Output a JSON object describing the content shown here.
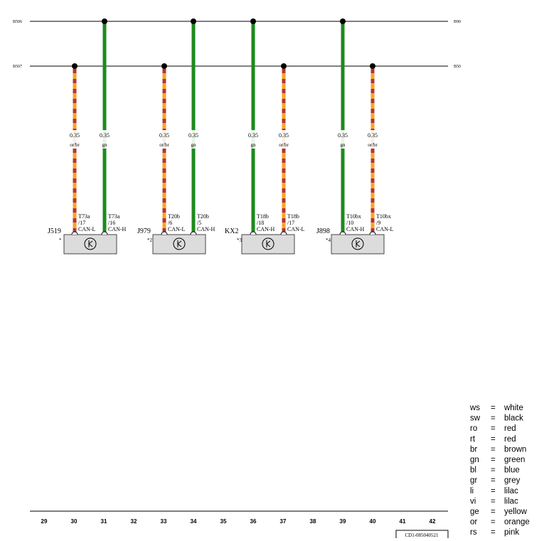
{
  "buses": [
    {
      "left_label": "B506",
      "right_label": "B90"
    },
    {
      "left_label": "B507",
      "right_label": "B50"
    }
  ],
  "wires": [
    {
      "size": "0.35",
      "color": "or/br",
      "connector": "T73a",
      "pin": "/17",
      "signal": "CAN-L"
    },
    {
      "size": "0.35",
      "color": "gn",
      "connector": "T73a",
      "pin": "/16",
      "signal": "CAN-H"
    },
    {
      "size": "0.35",
      "color": "or/br",
      "connector": "T20b",
      "pin": "/6",
      "signal": "CAN-L"
    },
    {
      "size": "0.35",
      "color": "gn",
      "connector": "T20b",
      "pin": "/5",
      "signal": "CAN-H"
    },
    {
      "size": "0.35",
      "color": "gn",
      "connector": "T18b",
      "pin": "/18",
      "signal": "CAN-H"
    },
    {
      "size": "0.35",
      "color": "or/br",
      "connector": "T18b",
      "pin": "/17",
      "signal": "CAN-L"
    },
    {
      "size": "0.35",
      "color": "gn",
      "connector": "T10bx",
      "pin": "/10",
      "signal": "CAN-H"
    },
    {
      "size": "0.35",
      "color": "or/br",
      "connector": "T10bx",
      "pin": "/9",
      "signal": "CAN-L"
    }
  ],
  "components": [
    {
      "label": "J519",
      "note": "*"
    },
    {
      "label": "J979",
      "note": "*2"
    },
    {
      "label": "KX2",
      "note": "*3"
    },
    {
      "label": "J898",
      "note": "*4"
    }
  ],
  "ruler": [
    "29",
    "30",
    "31",
    "32",
    "33",
    "34",
    "35",
    "36",
    "37",
    "38",
    "39",
    "40",
    "41",
    "42"
  ],
  "document_id": "CD1-085040521",
  "legend": [
    {
      "code": "ws",
      "eq": "=",
      "meaning": "white"
    },
    {
      "code": "sw",
      "eq": "=",
      "meaning": "black"
    },
    {
      "code": "ro",
      "eq": "=",
      "meaning": "red"
    },
    {
      "code": "rt",
      "eq": "=",
      "meaning": "red"
    },
    {
      "code": "br",
      "eq": "=",
      "meaning": "brown"
    },
    {
      "code": "gn",
      "eq": "=",
      "meaning": "green"
    },
    {
      "code": "bl",
      "eq": "=",
      "meaning": "blue"
    },
    {
      "code": "gr",
      "eq": "=",
      "meaning": "grey"
    },
    {
      "code": "li",
      "eq": "=",
      "meaning": "lilac"
    },
    {
      "code": "vi",
      "eq": "=",
      "meaning": "lilac"
    },
    {
      "code": "ge",
      "eq": "=",
      "meaning": "yellow"
    },
    {
      "code": "or",
      "eq": "=",
      "meaning": "orange"
    },
    {
      "code": "rs",
      "eq": "=",
      "meaning": "pink"
    }
  ]
}
